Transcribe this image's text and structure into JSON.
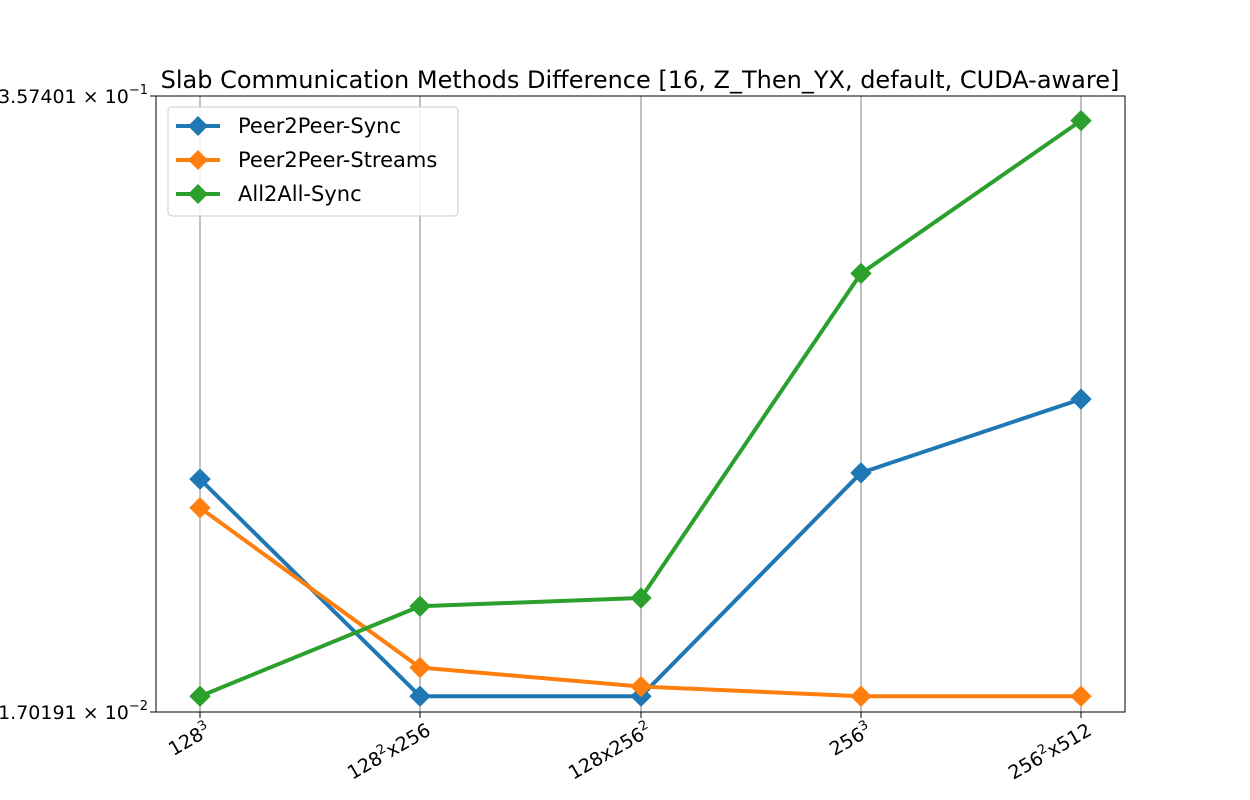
{
  "chart_data": {
    "type": "line",
    "title": "Slab Communication Methods Difference [16, Z_Then_YX, default, CUDA-aware]",
    "xlabel": "",
    "ylabel": "",
    "y_scale": "log",
    "ylim": [
      0.0170191,
      0.357401
    ],
    "y_tick_labels": [
      {
        "mantissa": "1.70191",
        "base": "10",
        "exp": "−2"
      },
      {
        "mantissa": "3.57401",
        "base": "10",
        "exp": "−1"
      }
    ],
    "categories": [
      {
        "base": "128",
        "sup": "3",
        "suffix": ""
      },
      {
        "base": "128",
        "sup": "2",
        "suffix": "x256"
      },
      {
        "base": "128x256",
        "sup": "2",
        "suffix": ""
      },
      {
        "base": "256",
        "sup": "3",
        "suffix": ""
      },
      {
        "base": "256",
        "sup": "2",
        "suffix": "x512"
      }
    ],
    "grid": "vertical",
    "legend_position": "top-left",
    "series": [
      {
        "name": "Peer2Peer-Sync",
        "color": "#1f77b4",
        "values": [
          0.0538,
          0.0184,
          0.0184,
          0.0555,
          0.0799
        ]
      },
      {
        "name": "Peer2Peer-Streams",
        "color": "#ff7f0e",
        "values": [
          0.0467,
          0.0212,
          0.0193,
          0.0184,
          0.0184
        ]
      },
      {
        "name": "All2All-Sync",
        "color": "#2ca02c",
        "values": [
          0.0184,
          0.0287,
          0.0299,
          0.1487,
          0.3164
        ]
      }
    ],
    "marker": "diamond"
  }
}
